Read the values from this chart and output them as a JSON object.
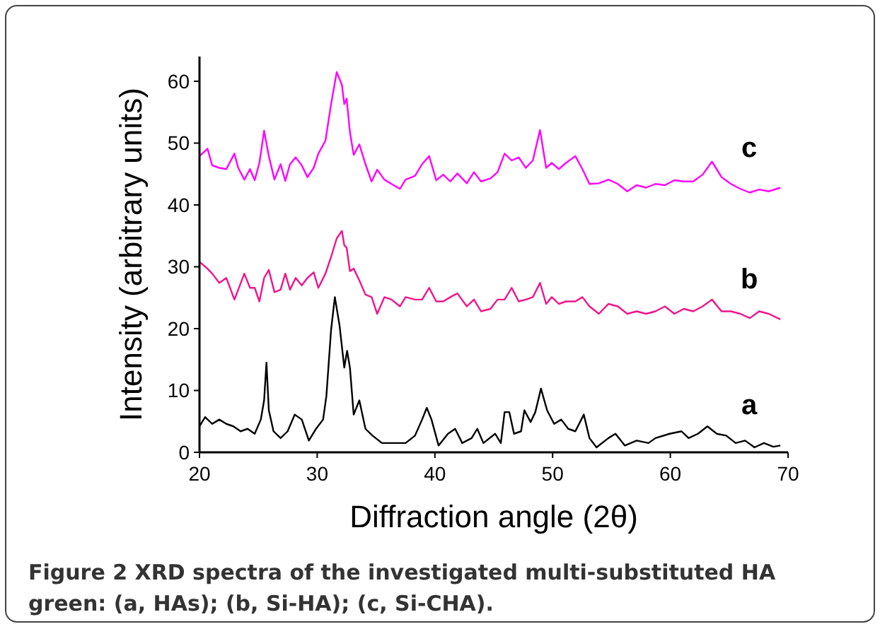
{
  "chart_data": {
    "type": "line",
    "xlabel": "Diffraction angle (2θ)",
    "ylabel": "Intensity (arbitrary units)",
    "xlim": [
      20,
      70
    ],
    "ylim": [
      0,
      64
    ],
    "xticks": [
      20,
      30,
      40,
      50,
      60,
      70
    ],
    "yticks": [
      0,
      10,
      20,
      30,
      40,
      50,
      60
    ],
    "grid": false,
    "marker": "none",
    "line_style": "solid",
    "annotations": [
      "Figure 2 XRD spectra of the investigated multi-substituted HA green: (a, HAs); (b, Si-HA); (c, Si-CHA)."
    ],
    "x": [
      20.0,
      20.68,
      21.08,
      21.68,
      22.28,
      22.97,
      23.29,
      23.81,
      24.29,
      24.69,
      25.09,
      25.49,
      25.89,
      26.37,
      26.89,
      27.29,
      27.69,
      28.17,
      28.69,
      29.17,
      29.7,
      30.1,
      30.7,
      31.18,
      31.66,
      32.1,
      32.3,
      32.5,
      32.78,
      33.1,
      33.58,
      34.1,
      34.62,
      35.1,
      35.71,
      36.31,
      37.03,
      37.51,
      38.31,
      38.91,
      39.51,
      40.11,
      40.71,
      41.31,
      41.91,
      42.71,
      43.32,
      43.92,
      44.72,
      45.32,
      45.92,
      46.52,
      47.12,
      47.72,
      48.32,
      48.93,
      49.45,
      49.93,
      50.53,
      51.13,
      51.93,
      52.53,
      53.13,
      53.93,
      54.74,
      55.54,
      56.34,
      57.14,
      57.94,
      58.74,
      59.54,
      60.34,
      61.14,
      61.94,
      62.74,
      63.54,
      64.35,
      65.15,
      65.95,
      66.75,
      67.55,
      68.35,
      69.35
    ],
    "series": [
      {
        "name": "a",
        "color": "#000000",
        "x": [
          20.0,
          20.48,
          21.08,
          21.68,
          22.28,
          22.88,
          23.49,
          24.09,
          24.69,
          25.21,
          25.49,
          25.69,
          25.89,
          26.29,
          26.89,
          27.49,
          28.09,
          28.69,
          29.29,
          29.9,
          30.5,
          30.78,
          31.18,
          31.5,
          31.9,
          32.3,
          32.54,
          32.78,
          33.1,
          33.58,
          34.1,
          34.7,
          35.5,
          36.51,
          37.51,
          38.31,
          38.91,
          39.31,
          39.71,
          40.31,
          41.11,
          41.72,
          42.32,
          43.12,
          43.6,
          44.12,
          45.12,
          45.6,
          45.92,
          46.32,
          46.72,
          47.32,
          47.6,
          48.13,
          48.53,
          49.01,
          49.53,
          50.13,
          50.73,
          51.33,
          51.93,
          52.65,
          53.13,
          53.73,
          54.74,
          55.34,
          56.14,
          57.14,
          58.14,
          58.74,
          59.94,
          60.95,
          61.55,
          62.35,
          63.15,
          63.95,
          64.75,
          65.55,
          66.35,
          67.15,
          67.95,
          68.75,
          69.35
        ],
        "values": [
          4.2,
          5.7,
          4.6,
          5.3,
          4.6,
          4.2,
          3.4,
          3.8,
          3.0,
          5.3,
          8.4,
          14.5,
          6.8,
          3.4,
          2.3,
          3.4,
          6.1,
          5.3,
          1.9,
          3.8,
          5.3,
          9.1,
          19.8,
          25.1,
          20.5,
          13.7,
          16.4,
          13.7,
          6.1,
          8.4,
          3.8,
          2.7,
          1.5,
          1.5,
          1.5,
          2.7,
          5.3,
          7.2,
          5.3,
          1.1,
          3.0,
          3.8,
          1.5,
          2.3,
          3.8,
          1.5,
          3.0,
          1.5,
          6.5,
          6.5,
          3.0,
          3.4,
          6.8,
          4.9,
          6.5,
          10.3,
          6.8,
          4.6,
          5.3,
          3.8,
          3.4,
          6.1,
          2.3,
          0.8,
          2.3,
          3.0,
          1.1,
          1.9,
          1.5,
          2.3,
          3.0,
          3.4,
          2.3,
          3.0,
          4.2,
          3.0,
          2.7,
          1.5,
          1.9,
          0.8,
          1.5,
          0.9,
          1.1
        ]
      },
      {
        "name": "b",
        "color": "#f0148c",
        "values": [
          30.8,
          29.7,
          28.9,
          27.4,
          28.2,
          24.7,
          26.3,
          28.9,
          26.6,
          26.6,
          24.4,
          28.2,
          29.5,
          25.9,
          26.3,
          28.9,
          26.3,
          28.2,
          27.0,
          28.2,
          29.1,
          26.6,
          28.9,
          31.6,
          34.6,
          35.8,
          33.5,
          33.1,
          29.3,
          29.7,
          27.8,
          25.5,
          25.1,
          22.4,
          25.1,
          24.7,
          23.6,
          25.1,
          24.7,
          24.7,
          26.6,
          24.4,
          24.4,
          25.1,
          25.7,
          23.6,
          24.7,
          22.8,
          23.2,
          24.7,
          24.7,
          26.6,
          24.4,
          24.7,
          25.1,
          27.4,
          24.0,
          25.1,
          24.0,
          24.4,
          24.4,
          25.1,
          23.6,
          22.4,
          24.0,
          23.6,
          22.4,
          22.8,
          22.4,
          22.8,
          23.6,
          22.4,
          23.2,
          22.8,
          23.6,
          24.7,
          22.8,
          22.8,
          22.4,
          21.7,
          22.8,
          22.4,
          21.5
        ]
      },
      {
        "name": "c",
        "color": "#ff00ff",
        "values": [
          47.9,
          49.1,
          46.4,
          46.0,
          45.8,
          48.3,
          46.0,
          44.1,
          45.8,
          44.0,
          46.8,
          52.0,
          47.9,
          44.1,
          46.6,
          43.9,
          46.6,
          47.7,
          46.4,
          44.5,
          46.0,
          48.3,
          50.4,
          56.3,
          61.5,
          59.4,
          56.3,
          57.2,
          51.8,
          48.1,
          49.8,
          46.6,
          43.8,
          45.7,
          44.1,
          43.4,
          42.6,
          44.1,
          44.7,
          46.6,
          47.9,
          44.0,
          44.9,
          43.8,
          45.1,
          43.5,
          45.3,
          43.8,
          44.3,
          45.3,
          48.3,
          47.2,
          47.7,
          46.0,
          47.2,
          52.1,
          46.0,
          46.8,
          45.8,
          46.8,
          47.9,
          45.8,
          43.4,
          43.5,
          44.1,
          43.4,
          42.2,
          43.2,
          42.8,
          43.4,
          43.2,
          44.0,
          43.8,
          43.8,
          44.9,
          47.0,
          44.5,
          43.4,
          42.6,
          42.0,
          42.5,
          42.2,
          42.8
        ]
      }
    ]
  }
}
